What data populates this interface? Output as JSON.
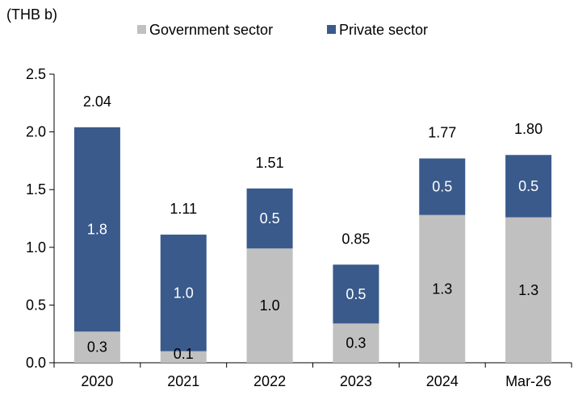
{
  "chart_data": {
    "type": "bar",
    "stacked": true,
    "unit_label": "(THB b)",
    "categories": [
      "2020",
      "2021",
      "2022",
      "2023",
      "2024",
      "Mar-26"
    ],
    "series": [
      {
        "name": "Government sector",
        "color": "#c0c0c0",
        "values": [
          0.27,
          0.1,
          0.99,
          0.34,
          1.28,
          1.26
        ],
        "labels": [
          "0.3",
          "0.1",
          "1.0",
          "0.3",
          "1.3",
          "1.3"
        ],
        "label_color": "#000000"
      },
      {
        "name": "Private sector",
        "color": "#3a5a8c",
        "values": [
          1.77,
          1.01,
          0.52,
          0.51,
          0.49,
          0.54
        ],
        "labels": [
          "1.8",
          "1.0",
          "0.5",
          "0.5",
          "0.5",
          "0.5"
        ],
        "label_color": "#ffffff"
      }
    ],
    "totals": [
      "2.04",
      "1.11",
      "1.51",
      "0.85",
      "1.77",
      "1.80"
    ],
    "ylim": [
      0,
      2.5
    ],
    "yticks": [
      "0.0",
      "0.5",
      "1.0",
      "1.5",
      "2.0",
      "2.5"
    ],
    "grid": false,
    "legend_position": "top"
  }
}
